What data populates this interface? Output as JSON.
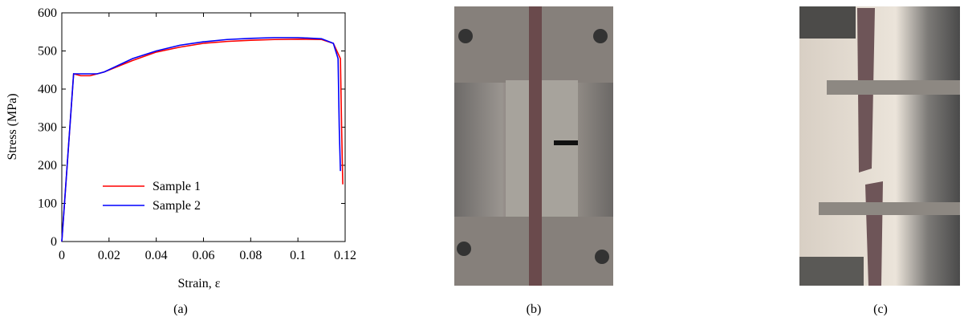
{
  "chart_data": {
    "type": "line",
    "xlabel": "Strain, ε",
    "ylabel": "Stress (MPa)",
    "xlim": [
      0,
      0.12
    ],
    "ylim": [
      0,
      600
    ],
    "xticks": [
      0,
      0.02,
      0.04,
      0.06,
      0.08,
      0.1,
      0.12
    ],
    "yticks": [
      0,
      100,
      200,
      300,
      400,
      500,
      600
    ],
    "legend": "lower left",
    "series": [
      {
        "name": "Sample 1",
        "color": "#ff0000",
        "x": [
          0,
          0.005,
          0.008,
          0.012,
          0.015,
          0.018,
          0.03,
          0.04,
          0.05,
          0.06,
          0.07,
          0.08,
          0.09,
          0.1,
          0.11,
          0.115,
          0.118,
          0.1185,
          0.119
        ],
        "values": [
          0,
          440,
          435,
          435,
          440,
          445,
          475,
          497,
          510,
          520,
          525,
          528,
          530,
          531,
          530,
          520,
          480,
          300,
          150
        ]
      },
      {
        "name": "Sample 2",
        "color": "#0000ff",
        "x": [
          0,
          0.005,
          0.008,
          0.012,
          0.015,
          0.018,
          0.03,
          0.04,
          0.05,
          0.06,
          0.07,
          0.08,
          0.09,
          0.1,
          0.11,
          0.115,
          0.117,
          0.1175,
          0.118
        ],
        "values": [
          0,
          440,
          440,
          440,
          440,
          445,
          480,
          500,
          515,
          524,
          530,
          533,
          535,
          535,
          532,
          520,
          480,
          300,
          185
        ]
      }
    ]
  },
  "captions": [
    "(a)",
    "(b)",
    "(c)"
  ]
}
